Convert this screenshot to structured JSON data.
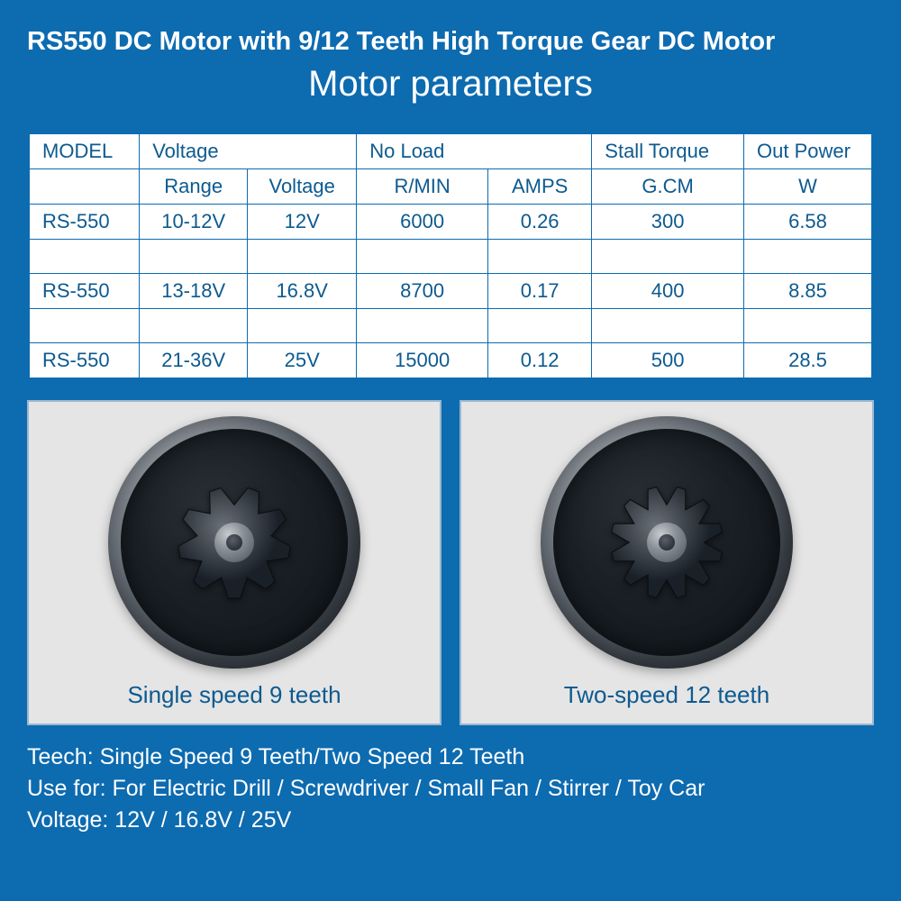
{
  "title": "RS550 DC Motor with 9/12 Teeth High Torque Gear DC Motor",
  "subtitle": "Motor parameters",
  "table": {
    "header1": {
      "model": "MODEL",
      "voltage": "Voltage",
      "noload": "No Load",
      "stall": "Stall Torque",
      "out": "Out Power"
    },
    "header2": {
      "range": "Range",
      "voltage": "Voltage",
      "rmin": "R/MIN",
      "amps": "AMPS",
      "gcm": "G.CM",
      "w": "W"
    },
    "rows": [
      {
        "model": "RS-550",
        "range": "10-12V",
        "voltage": "12V",
        "rmin": "6000",
        "amps": "0.26",
        "gcm": "300",
        "w": "6.58"
      },
      {
        "model": "RS-550",
        "range": "13-18V",
        "voltage": "16.8V",
        "rmin": "8700",
        "amps": "0.17",
        "gcm": "400",
        "w": "8.85"
      },
      {
        "model": "RS-550",
        "range": "21-36V",
        "voltage": "25V",
        "rmin": "15000",
        "amps": "0.12",
        "gcm": "500",
        "w": "28.5"
      }
    ]
  },
  "gears": {
    "left": {
      "label": "Single speed 9 teeth",
      "teeth": 9
    },
    "right": {
      "label": "Two-speed 12 teeth",
      "teeth": 12
    }
  },
  "footer": {
    "line1": "Teech: Single Speed 9 Teeth/Two Speed 12 Teeth",
    "line2": "Use for: For Electric Drill / Screwdriver / Small Fan / Stirrer / Toy Car",
    "line3": "Voltage: 12V / 16.8V / 25V"
  },
  "colors": {
    "page_bg": "#0d6bb0",
    "table_bg": "#ffffff",
    "table_border": "#0d6bb0",
    "table_text": "#0d5a8f",
    "gearbox_bg": "#e5e5e5",
    "gearbox_border": "#9ab8d0",
    "footer_text": "#ffffff"
  }
}
